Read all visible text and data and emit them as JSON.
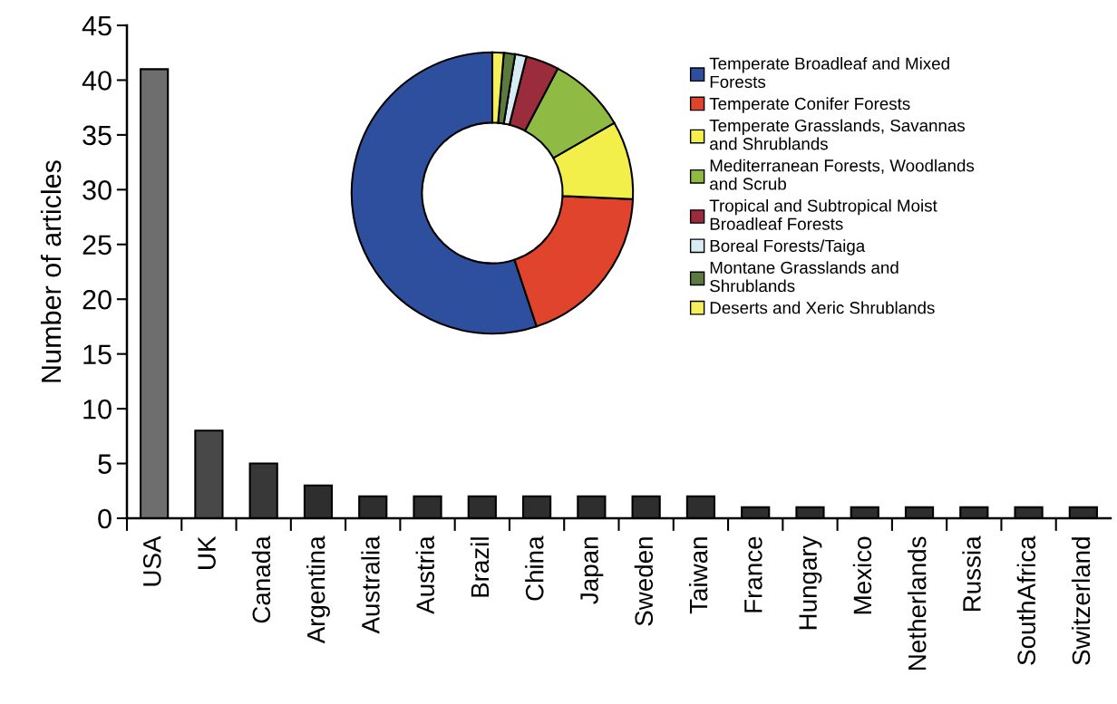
{
  "chart_data": [
    {
      "type": "bar",
      "ylabel": "Number of articles",
      "categories": [
        "USA",
        "UK",
        "Canada",
        "Argentina",
        "Australia",
        "Austria",
        "Brazil",
        "China",
        "Japan",
        "Sweden",
        "Taiwan",
        "France",
        "Hungary",
        "Mexico",
        "Netherlands",
        "Russia",
        "SouthAfrica",
        "Switzerland"
      ],
      "values": [
        41,
        8,
        5,
        3,
        2,
        2,
        2,
        2,
        2,
        2,
        2,
        1,
        1,
        1,
        1,
        1,
        1,
        1
      ],
      "colors": [
        "#6e6e6e",
        "#484848",
        "#383838",
        "#2e2e2e",
        "#2e2e2e",
        "#2e2e2e",
        "#2e2e2e",
        "#2e2e2e",
        "#2e2e2e",
        "#2e2e2e",
        "#2e2e2e",
        "#2e2e2e",
        "#2e2e2e",
        "#2e2e2e",
        "#2e2e2e",
        "#2e2e2e",
        "#2e2e2e",
        "#2e2e2e"
      ],
      "ylim": [
        0,
        45
      ],
      "yticks": [
        0,
        5,
        10,
        15,
        20,
        25,
        30,
        35,
        40,
        45
      ],
      "grid": false
    },
    {
      "type": "donut",
      "legend": "right",
      "categories": [
        "Temperate Broadleaf and Mixed\nForests",
        "Temperate Conifer Forests",
        "Temperate Grasslands, Savannas\nand Shrublands",
        "Mediterranean Forests, Woodlands\nand Scrub",
        "Tropical and Subtropical Moist\nBroadleaf Forests",
        "Boreal Forests/Taiga",
        "Montane Grasslands and\nShrublands",
        "Deserts and Xeric Shrublands"
      ],
      "values": [
        55.1,
        19.2,
        9.0,
        9.0,
        3.8,
        1.3,
        1.3,
        1.3
      ],
      "colors": [
        "#2e4f9e",
        "#e0442c",
        "#f2ee4a",
        "#8fbb45",
        "#9b2c3c",
        "#d8ecf5",
        "#5d7a3e",
        "#f4ef5a"
      ]
    }
  ]
}
